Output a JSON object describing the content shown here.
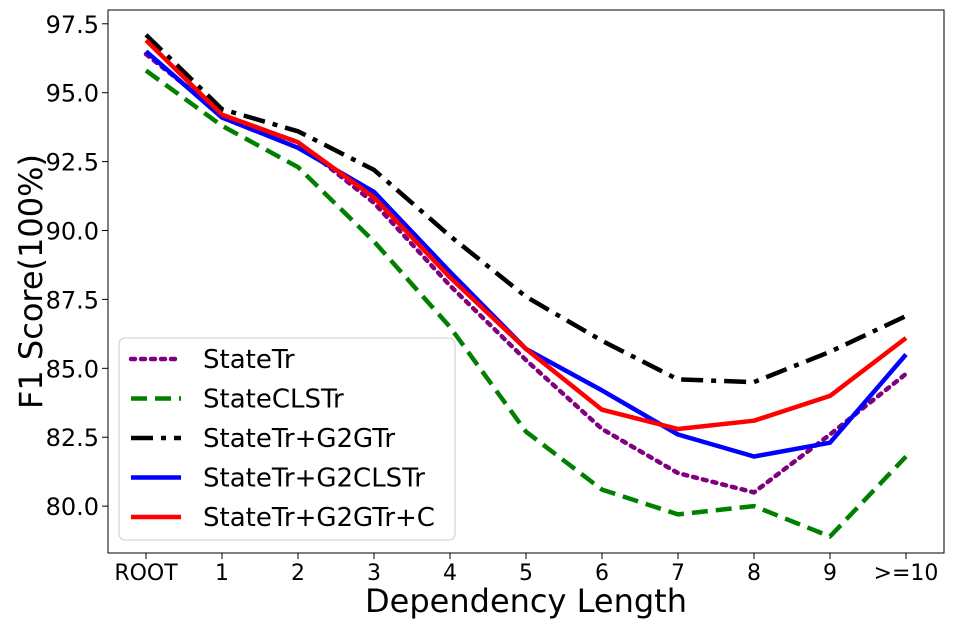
{
  "chart_data": {
    "type": "line",
    "title": "",
    "xlabel": "Dependency Length",
    "ylabel": "F1 Score(100%)",
    "categories": [
      "ROOT",
      "1",
      "2",
      "3",
      "4",
      "5",
      "6",
      "7",
      "8",
      "9",
      ">=10"
    ],
    "ylim": [
      78.3,
      98.0
    ],
    "yticks": [
      "80.0",
      "82.5",
      "85.0",
      "87.5",
      "90.0",
      "92.5",
      "95.0",
      "97.5"
    ],
    "grid": false,
    "legend_position": "lower-left",
    "series": [
      {
        "name": "StateTr",
        "color": "#800080",
        "style": "dotted",
        "values": [
          96.4,
          94.2,
          93.2,
          91.0,
          88.0,
          85.3,
          82.8,
          81.2,
          80.5,
          82.6,
          84.8
        ]
      },
      {
        "name": "StateCLSTr",
        "color": "#008000",
        "style": "dashed",
        "values": [
          95.8,
          93.8,
          92.3,
          89.6,
          86.5,
          82.7,
          80.6,
          79.7,
          80.0,
          78.9,
          81.8
        ]
      },
      {
        "name": "StateTr+G2GTr",
        "color": "#000000",
        "style": "dashdot",
        "values": [
          97.1,
          94.4,
          93.6,
          92.2,
          89.8,
          87.6,
          86.0,
          84.6,
          84.5,
          85.6,
          86.9
        ]
      },
      {
        "name": "StateTr+G2CLSTr",
        "color": "#0000ff",
        "style": "solid",
        "values": [
          96.5,
          94.1,
          93.0,
          91.4,
          88.5,
          85.7,
          84.2,
          82.6,
          81.8,
          82.3,
          85.5
        ]
      },
      {
        "name": "StateTr+G2GTr+C",
        "color": "#ff0000",
        "style": "solid",
        "values": [
          96.9,
          94.2,
          93.2,
          91.2,
          88.3,
          85.7,
          83.5,
          82.8,
          83.1,
          84.0,
          86.1
        ]
      }
    ]
  }
}
